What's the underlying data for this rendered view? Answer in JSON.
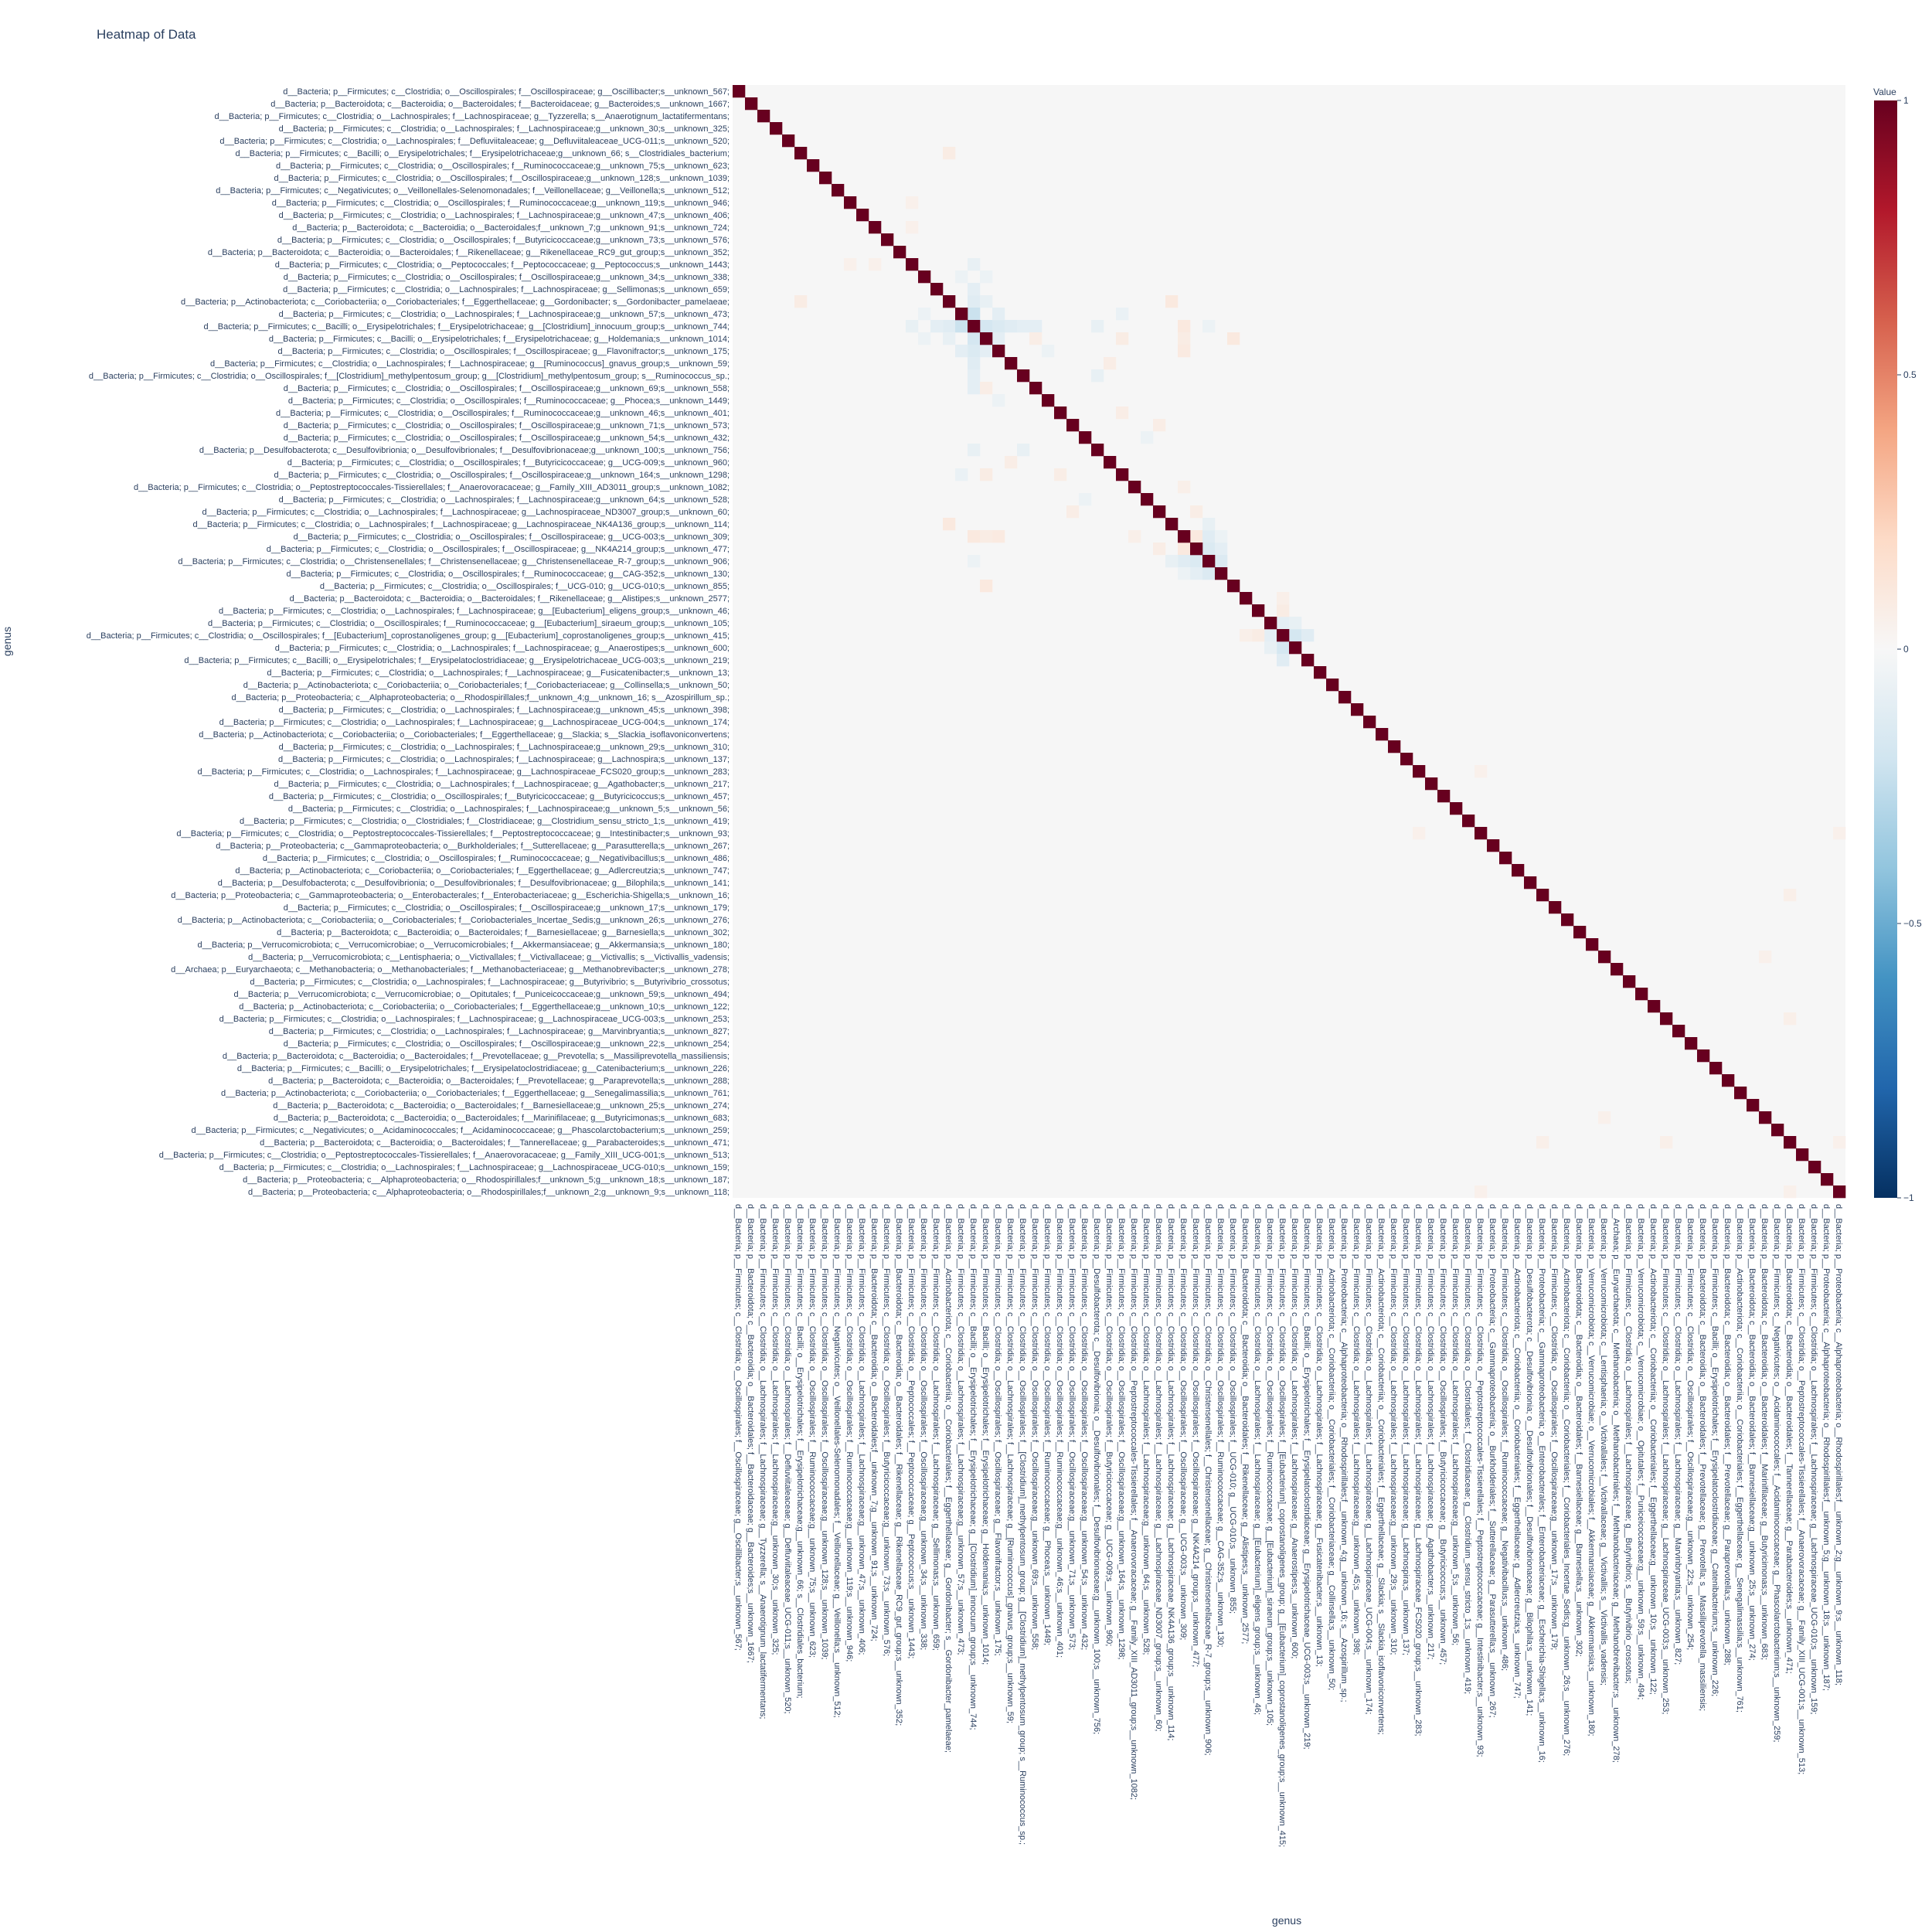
{
  "chart_data": {
    "type": "heatmap",
    "title": "Heatmap of Data",
    "xlabel": "genus",
    "ylabel": "genus",
    "colorbar": {
      "title": "Value",
      "range": [
        -1,
        1
      ],
      "ticks": [
        1,
        0.5,
        0,
        -0.5,
        -1
      ],
      "tick_labels": [
        "1",
        "0.5",
        "0",
        "−0.5",
        "−1"
      ],
      "colors": [
        "#053061",
        "#2166ac",
        "#4393c3",
        "#92c5de",
        "#d1e5f0",
        "#f7f7f7",
        "#fddbc7",
        "#f4a582",
        "#d6604d",
        "#b2182b",
        "#67001f"
      ]
    },
    "n_rows": 90,
    "n_cols": 90,
    "labels": [
      "d__Bacteria; p__Firmicutes; c__Clostridia; o__Oscillospirales; f__Oscillospiraceae; g__Oscillibacter;s__unknown_567;",
      "d__Bacteria; p__Bacteroidota; c__Bacteroidia; o__Bacteroidales; f__Bacteroidaceae; g__Bacteroides;s__unknown_1667;",
      "d__Bacteria; p__Firmicutes; c__Clostridia; o__Lachnospirales; f__Lachnospiraceae; g__Tyzzerella; s__Anaerotignum_lactatifermentans;",
      "d__Bacteria; p__Firmicutes; c__Clostridia; o__Lachnospirales; f__Lachnospiraceae;g__unknown_30;s__unknown_325;",
      "d__Bacteria; p__Firmicutes; c__Clostridia; o__Lachnospirales; f__Defluviitaleaceae; g__Defluviitaleaceae_UCG-011;s__unknown_520;",
      "d__Bacteria; p__Firmicutes; c__Bacilli; o__Erysipelotrichales; f__Erysipelotrichaceae;g__unknown_66; s__Clostridiales_bacterium;",
      "d__Bacteria; p__Firmicutes; c__Clostridia; o__Oscillospirales; f__Ruminococcaceae;g__unknown_75;s__unknown_623;",
      "d__Bacteria; p__Firmicutes; c__Clostridia; o__Oscillospirales; f__Oscillospiraceae;g__unknown_128;s__unknown_1039;",
      "d__Bacteria; p__Firmicutes; c__Negativicutes; o__Veillonellales-Selenomonadales; f__Veillonellaceae; g__Veillonella;s__unknown_512;",
      "d__Bacteria; p__Firmicutes; c__Clostridia; o__Oscillospirales; f__Ruminococcaceae;g__unknown_119;s__unknown_946;",
      "d__Bacteria; p__Firmicutes; c__Clostridia; o__Lachnospirales; f__Lachnospiraceae;g__unknown_47;s__unknown_406;",
      "d__Bacteria; p__Bacteroidota; c__Bacteroidia; o__Bacteroidales;f__unknown_7;g__unknown_91;s__unknown_724;",
      "d__Bacteria; p__Firmicutes; c__Clostridia; o__Oscillospirales; f__Butyricicoccaceae;g__unknown_73;s__unknown_576;",
      "d__Bacteria; p__Bacteroidota; c__Bacteroidia; o__Bacteroidales; f__Rikenellaceae; g__Rikenellaceae_RC9_gut_group;s__unknown_352;",
      "d__Bacteria; p__Firmicutes; c__Clostridia; o__Peptococcales; f__Peptococcaceae; g__Peptococcus;s__unknown_1443;",
      "d__Bacteria; p__Firmicutes; c__Clostridia; o__Oscillospirales; f__Oscillospiraceae;g__unknown_34;s__unknown_338;",
      "d__Bacteria; p__Firmicutes; c__Clostridia; o__Lachnospirales; f__Lachnospiraceae; g__Sellimonas;s__unknown_659;",
      "d__Bacteria; p__Actinobacteriota; c__Coriobacteriia; o__Coriobacteriales; f__Eggerthellaceae; g__Gordonibacter; s__Gordonibacter_pamelaeae;",
      "d__Bacteria; p__Firmicutes; c__Clostridia; o__Lachnospirales; f__Lachnospiraceae;g__unknown_57;s__unknown_473;",
      "d__Bacteria; p__Firmicutes; c__Bacilli; o__Erysipelotrichales; f__Erysipelotrichaceae; g__[Clostridium]_innocuum_group;s__unknown_744;",
      "d__Bacteria; p__Firmicutes; c__Bacilli; o__Erysipelotrichales; f__Erysipelotrichaceae; g__Holdemania;s__unknown_1014;",
      "d__Bacteria; p__Firmicutes; c__Clostridia; o__Oscillospirales; f__Oscillospiraceae; g__Flavonifractor;s__unknown_175;",
      "d__Bacteria; p__Firmicutes; c__Clostridia; o__Lachnospirales; f__Lachnospiraceae; g__[Ruminococcus]_gnavus_group;s__unknown_59;",
      "d__Bacteria; p__Firmicutes; c__Clostridia; o__Oscillospirales; f__[Clostridium]_methylpentosum_group; g__[Clostridium]_methylpentosum_group; s__Ruminococcus_sp.;",
      "d__Bacteria; p__Firmicutes; c__Clostridia; o__Oscillospirales; f__Oscillospiraceae;g__unknown_69;s__unknown_558;",
      "d__Bacteria; p__Firmicutes; c__Clostridia; o__Oscillospirales; f__Ruminococcaceae; g__Phocea;s__unknown_1449;",
      "d__Bacteria; p__Firmicutes; c__Clostridia; o__Oscillospirales; f__Ruminococcaceae;g__unknown_46;s__unknown_401;",
      "d__Bacteria; p__Firmicutes; c__Clostridia; o__Oscillospirales; f__Oscillospiraceae;g__unknown_71;s__unknown_573;",
      "d__Bacteria; p__Firmicutes; c__Clostridia; o__Oscillospirales; f__Oscillospiraceae;g__unknown_54;s__unknown_432;",
      "d__Bacteria; p__Desulfobacterota; c__Desulfovibrionia; o__Desulfovibrionales; f__Desulfovibrionaceae;g__unknown_100;s__unknown_756;",
      "d__Bacteria; p__Firmicutes; c__Clostridia; o__Oscillospirales; f__Butyricicoccaceae; g__UCG-009;s__unknown_960;",
      "d__Bacteria; p__Firmicutes; c__Clostridia; o__Oscillospirales; f__Oscillospiraceae;g__unknown_164;s__unknown_1298;",
      "d__Bacteria; p__Firmicutes; c__Clostridia; o__Peptostreptococcales-Tissierellales; f__Anaerovoracaceae; g__Family_XIII_AD3011_group;s__unknown_1082;",
      "d__Bacteria; p__Firmicutes; c__Clostridia; o__Lachnospirales; f__Lachnospiraceae;g__unknown_64;s__unknown_528;",
      "d__Bacteria; p__Firmicutes; c__Clostridia; o__Lachnospirales; f__Lachnospiraceae; g__Lachnospiraceae_ND3007_group;s__unknown_60;",
      "d__Bacteria; p__Firmicutes; c__Clostridia; o__Lachnospirales; f__Lachnospiraceae; g__Lachnospiraceae_NK4A136_group;s__unknown_114;",
      "d__Bacteria; p__Firmicutes; c__Clostridia; o__Oscillospirales; f__Oscillospiraceae; g__UCG-003;s__unknown_309;",
      "d__Bacteria; p__Firmicutes; c__Clostridia; o__Oscillospirales; f__Oscillospiraceae; g__NK4A214_group;s__unknown_477;",
      "d__Bacteria; p__Firmicutes; c__Clostridia; o__Christensenellales; f__Christensenellaceae; g__Christensenellaceae_R-7_group;s__unknown_906;",
      "d__Bacteria; p__Firmicutes; c__Clostridia; o__Oscillospirales; f__Ruminococcaceae; g__CAG-352;s__unknown_130;",
      "d__Bacteria; p__Firmicutes; c__Clostridia; o__Oscillospirales; f__UCG-010; g__UCG-010;s__unknown_855;",
      "d__Bacteria; p__Bacteroidota; c__Bacteroidia; o__Bacteroidales; f__Rikenellaceae; g__Alistipes;s__unknown_2577;",
      "d__Bacteria; p__Firmicutes; c__Clostridia; o__Lachnospirales; f__Lachnospiraceae; g__[Eubacterium]_eligens_group;s__unknown_46;",
      "d__Bacteria; p__Firmicutes; c__Clostridia; o__Oscillospirales; f__Ruminococcaceae; g__[Eubacterium]_siraeum_group;s__unknown_105;",
      "d__Bacteria; p__Firmicutes; c__Clostridia; o__Oscillospirales; f__[Eubacterium]_coprostanoligenes_group; g__[Eubacterium]_coprostanoligenes_group;s__unknown_415;",
      "d__Bacteria; p__Firmicutes; c__Clostridia; o__Lachnospirales; f__Lachnospiraceae; g__Anaerostipes;s__unknown_600;",
      "d__Bacteria; p__Firmicutes; c__Bacilli; o__Erysipelotrichales; f__Erysipelatoclostridiaceae; g__Erysipelotrichaceae_UCG-003;s__unknown_219;",
      "d__Bacteria; p__Firmicutes; c__Clostridia; o__Lachnospirales; f__Lachnospiraceae; g__Fusicatenibacter;s__unknown_13;",
      "d__Bacteria; p__Actinobacteriota; c__Coriobacteriia; o__Coriobacteriales; f__Coriobacteriaceae; g__Collinsella;s__unknown_50;",
      "d__Bacteria; p__Proteobacteria; c__Alphaproteobacteria; o__Rhodospirillales;f__unknown_4;g__unknown_16; s__Azospirillum_sp.;",
      "d__Bacteria; p__Firmicutes; c__Clostridia; o__Lachnospirales; f__Lachnospiraceae;g__unknown_45;s__unknown_398;",
      "d__Bacteria; p__Firmicutes; c__Clostridia; o__Lachnospirales; f__Lachnospiraceae; g__Lachnospiraceae_UCG-004;s__unknown_174;",
      "d__Bacteria; p__Actinobacteriota; c__Coriobacteriia; o__Coriobacteriales; f__Eggerthellaceae; g__Slackia; s__Slackia_isoflavoniconvertens;",
      "d__Bacteria; p__Firmicutes; c__Clostridia; o__Lachnospirales; f__Lachnospiraceae;g__unknown_29;s__unknown_310;",
      "d__Bacteria; p__Firmicutes; c__Clostridia; o__Lachnospirales; f__Lachnospiraceae; g__Lachnospira;s__unknown_137;",
      "d__Bacteria; p__Firmicutes; c__Clostridia; o__Lachnospirales; f__Lachnospiraceae; g__Lachnospiraceae_FCS020_group;s__unknown_283;",
      "d__Bacteria; p__Firmicutes; c__Clostridia; o__Lachnospirales; f__Lachnospiraceae; g__Agathobacter;s__unknown_217;",
      "d__Bacteria; p__Firmicutes; c__Clostridia; o__Oscillospirales; f__Butyricicoccaceae; g__Butyricicoccus;s__unknown_457;",
      "d__Bacteria; p__Firmicutes; c__Clostridia; o__Lachnospirales; f__Lachnospiraceae;g__unknown_5;s__unknown_56;",
      "d__Bacteria; p__Firmicutes; c__Clostridia; o__Clostridiales; f__Clostridiaceae; g__Clostridium_sensu_stricto_1;s__unknown_419;",
      "d__Bacteria; p__Firmicutes; c__Clostridia; o__Peptostreptococcales-Tissierellales; f__Peptostreptococcaceae; g__Intestinibacter;s__unknown_93;",
      "d__Bacteria; p__Proteobacteria; c__Gammaproteobacteria; o__Burkholderiales; f__Sutterellaceae; g__Parasutterella;s__unknown_267;",
      "d__Bacteria; p__Firmicutes; c__Clostridia; o__Oscillospirales; f__Ruminococcaceae; g__Negativibacillus;s__unknown_486;",
      "d__Bacteria; p__Actinobacteriota; c__Coriobacteriia; o__Coriobacteriales; f__Eggerthellaceae; g__Adlercreutzia;s__unknown_747;",
      "d__Bacteria; p__Desulfobacterota; c__Desulfovibrionia; o__Desulfovibrionales; f__Desulfovibrionaceae; g__Bilophila;s__unknown_141;",
      "d__Bacteria; p__Proteobacteria; c__Gammaproteobacteria; o__Enterobacterales; f__Enterobacteriaceae; g__Escherichia-Shigella;s__unknown_16;",
      "d__Bacteria; p__Firmicutes; c__Clostridia; o__Oscillospirales; f__Oscillospiraceae;g__unknown_17;s__unknown_179;",
      "d__Bacteria; p__Actinobacteriota; c__Coriobacteriia; o__Coriobacteriales; f__Coriobacteriales_Incertae_Sedis;g__unknown_26;s__unknown_276;",
      "d__Bacteria; p__Bacteroidota; c__Bacteroidia; o__Bacteroidales; f__Barnesiellaceae; g__Barnesiella;s__unknown_302;",
      "d__Bacteria; p__Verrucomicrobiota; c__Verrucomicrobiae; o__Verrucomicrobiales; f__Akkermansiaceae; g__Akkermansia;s__unknown_180;",
      "d__Bacteria; p__Verrucomicrobiota; c__Lentisphaeria; o__Victivallales; f__Victivallaceae; g__Victivallis; s__Victivallis_vadensis;",
      "d__Archaea; p__Euryarchaeota; c__Methanobacteria; o__Methanobacteriales; f__Methanobacteriaceae; g__Methanobrevibacter;s__unknown_278;",
      "d__Bacteria; p__Firmicutes; c__Clostridia; o__Lachnospirales; f__Lachnospiraceae; g__Butyrivibrio; s__Butyrivibrio_crossotus;",
      "d__Bacteria; p__Verrucomicrobiota; c__Verrucomicrobiae; o__Opitutales; f__Puniceicoccaceae;g__unknown_59;s__unknown_494;",
      "d__Bacteria; p__Actinobacteriota; c__Coriobacteriia; o__Coriobacteriales; f__Eggerthellaceae;g__unknown_10;s__unknown_122;",
      "d__Bacteria; p__Firmicutes; c__Clostridia; o__Lachnospirales; f__Lachnospiraceae; g__Lachnospiraceae_UCG-003;s__unknown_253;",
      "d__Bacteria; p__Firmicutes; c__Clostridia; o__Lachnospirales; f__Lachnospiraceae; g__Marvinbryantia;s__unknown_827;",
      "d__Bacteria; p__Firmicutes; c__Clostridia; o__Oscillospirales; f__Oscillospiraceae;g__unknown_22;s__unknown_254;",
      "d__Bacteria; p__Bacteroidota; c__Bacteroidia; o__Bacteroidales; f__Prevotellaceae; g__Prevotella; s__Massiliprevotella_massiliensis;",
      "d__Bacteria; p__Firmicutes; c__Bacilli; o__Erysipelotrichales; f__Erysipelatoclostridiaceae; g__Catenibacterium;s__unknown_226;",
      "d__Bacteria; p__Bacteroidota; c__Bacteroidia; o__Bacteroidales; f__Prevotellaceae; g__Paraprevotella;s__unknown_288;",
      "d__Bacteria; p__Actinobacteriota; c__Coriobacteriia; o__Coriobacteriales; f__Eggerthellaceae; g__Senegalimassilia;s__unknown_761;",
      "d__Bacteria; p__Bacteroidota; c__Bacteroidia; o__Bacteroidales; f__Barnesiellaceae;g__unknown_25;s__unknown_274;",
      "d__Bacteria; p__Bacteroidota; c__Bacteroidia; o__Bacteroidales; f__Marinifilaceae; g__Butyricimonas;s__unknown_683;",
      "d__Bacteria; p__Firmicutes; c__Negativicutes; o__Acidaminococcales; f__Acidaminococcaceae; g__Phascolarctobacterium;s__unknown_259;",
      "d__Bacteria; p__Bacteroidota; c__Bacteroidia; o__Bacteroidales; f__Tannerellaceae; g__Parabacteroides;s__unknown_471;",
      "d__Bacteria; p__Firmicutes; c__Clostridia; o__Peptostreptococcales-Tissierellales; f__Anaerovoracaceae; g__Family_XIII_UCG-001;s__unknown_513;",
      "d__Bacteria; p__Firmicutes; c__Clostridia; o__Lachnospirales; f__Lachnospiraceae; g__Lachnospiraceae_UCG-010;s__unknown_159;",
      "d__Bacteria; p__Proteobacteria; c__Alphaproteobacteria; o__Rhodospirillales;f__unknown_5;g__unknown_18;s__unknown_187;",
      "d__Bacteria; p__Proteobacteria; c__Alphaproteobacteria; o__Rhodospirillales;f__unknown_2;g__unknown_9;s__unknown_118;"
    ],
    "default_value": 0.0,
    "diagonal_value": 1.0,
    "cells": [
      [
        17,
        19,
        -0.12
      ],
      [
        19,
        17,
        -0.12
      ],
      [
        18,
        19,
        -0.22
      ],
      [
        19,
        18,
        -0.22
      ],
      [
        17,
        20,
        -0.08
      ],
      [
        20,
        17,
        -0.08
      ],
      [
        19,
        20,
        -0.18
      ],
      [
        20,
        19,
        -0.18
      ],
      [
        19,
        21,
        -0.15
      ],
      [
        21,
        19,
        -0.15
      ],
      [
        18,
        21,
        -0.1
      ],
      [
        21,
        18,
        -0.1
      ],
      [
        19,
        22,
        -0.12
      ],
      [
        22,
        19,
        -0.12
      ],
      [
        20,
        21,
        -0.1
      ],
      [
        21,
        20,
        -0.1
      ],
      [
        19,
        23,
        -0.1
      ],
      [
        23,
        19,
        -0.1
      ],
      [
        19,
        24,
        -0.1
      ],
      [
        24,
        19,
        -0.1
      ],
      [
        21,
        25,
        -0.06
      ],
      [
        25,
        21,
        -0.06
      ],
      [
        19,
        16,
        -0.1
      ],
      [
        16,
        19,
        -0.1
      ],
      [
        18,
        15,
        -0.06
      ],
      [
        15,
        18,
        -0.06
      ],
      [
        19,
        14,
        -0.08
      ],
      [
        14,
        19,
        -0.08
      ],
      [
        20,
        15,
        -0.06
      ],
      [
        15,
        20,
        -0.06
      ],
      [
        19,
        29,
        -0.08
      ],
      [
        29,
        19,
        -0.08
      ],
      [
        23,
        29,
        -0.08
      ],
      [
        29,
        23,
        -0.08
      ],
      [
        19,
        36,
        0.1
      ],
      [
        36,
        19,
        0.1
      ],
      [
        20,
        36,
        0.08
      ],
      [
        36,
        20,
        0.08
      ],
      [
        19,
        38,
        -0.06
      ],
      [
        38,
        19,
        -0.06
      ],
      [
        17,
        35,
        0.1
      ],
      [
        35,
        17,
        0.1
      ],
      [
        18,
        31,
        -0.07
      ],
      [
        31,
        18,
        -0.07
      ],
      [
        20,
        31,
        0.08
      ],
      [
        31,
        20,
        0.08
      ],
      [
        22,
        30,
        0.07
      ],
      [
        30,
        22,
        0.07
      ],
      [
        27,
        34,
        0.07
      ],
      [
        34,
        27,
        0.07
      ],
      [
        20,
        40,
        0.1
      ],
      [
        40,
        20,
        0.1
      ],
      [
        21,
        36,
        0.09
      ],
      [
        36,
        21,
        0.09
      ],
      [
        17,
        5,
        0.08
      ],
      [
        5,
        17,
        0.08
      ],
      [
        28,
        33,
        -0.06
      ],
      [
        33,
        28,
        -0.06
      ],
      [
        26,
        31,
        0.07
      ],
      [
        31,
        26,
        0.07
      ],
      [
        36,
        37,
        0.1
      ],
      [
        37,
        36,
        0.1
      ],
      [
        37,
        38,
        -0.15
      ],
      [
        38,
        37,
        -0.15
      ],
      [
        36,
        38,
        -0.12
      ],
      [
        38,
        36,
        -0.12
      ],
      [
        37,
        39,
        -0.1
      ],
      [
        39,
        37,
        -0.1
      ],
      [
        38,
        39,
        -0.14
      ],
      [
        39,
        38,
        -0.14
      ],
      [
        36,
        39,
        -0.06
      ],
      [
        39,
        36,
        -0.06
      ],
      [
        35,
        38,
        -0.08
      ],
      [
        38,
        35,
        -0.08
      ],
      [
        34,
        37,
        0.07
      ],
      [
        37,
        34,
        0.07
      ],
      [
        32,
        36,
        0.06
      ],
      [
        36,
        32,
        0.06
      ],
      [
        44,
        45,
        -0.18
      ],
      [
        45,
        44,
        -0.18
      ],
      [
        43,
        44,
        -0.1
      ],
      [
        44,
        43,
        -0.1
      ],
      [
        44,
        46,
        -0.12
      ],
      [
        46,
        44,
        -0.12
      ],
      [
        43,
        45,
        -0.08
      ],
      [
        45,
        43,
        -0.08
      ],
      [
        42,
        44,
        0.08
      ],
      [
        44,
        42,
        0.08
      ],
      [
        44,
        41,
        0.06
      ],
      [
        41,
        44,
        0.06
      ],
      [
        11,
        14,
        0.05
      ],
      [
        14,
        11,
        0.05
      ],
      [
        9,
        14,
        0.05
      ],
      [
        14,
        9,
        0.05
      ],
      [
        24,
        20,
        0.07
      ],
      [
        20,
        24,
        0.07
      ],
      [
        55,
        60,
        0.05
      ],
      [
        60,
        55,
        0.05
      ],
      [
        70,
        83,
        0.05
      ],
      [
        83,
        70,
        0.05
      ],
      [
        65,
        85,
        0.06
      ],
      [
        85,
        65,
        0.06
      ],
      [
        60,
        89,
        0.05
      ],
      [
        89,
        60,
        0.05
      ],
      [
        75,
        85,
        0.06
      ],
      [
        85,
        75,
        0.06
      ],
      [
        85,
        89,
        0.05
      ],
      [
        89,
        85,
        0.05
      ]
    ]
  }
}
